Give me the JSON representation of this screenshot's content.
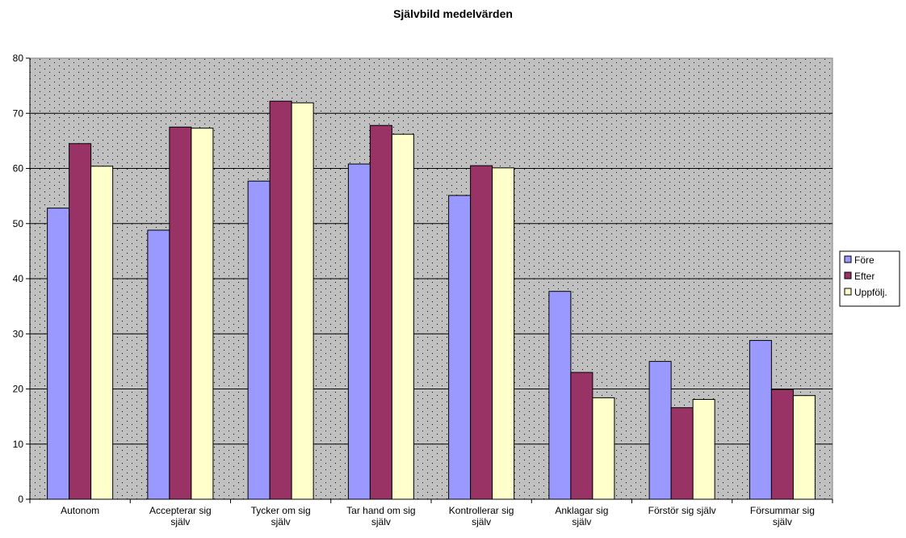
{
  "chart_data": {
    "type": "bar",
    "title": "Självbild medelvärden",
    "xlabel": "",
    "ylabel": "",
    "ylim": [
      0,
      80
    ],
    "ytick_step": 10,
    "grid": true,
    "legend_position": "right",
    "categories": [
      [
        "Autonom"
      ],
      [
        "Accepterar sig",
        "själv"
      ],
      [
        "Tycker om sig",
        "själv"
      ],
      [
        "Tar hand om sig",
        "själv"
      ],
      [
        "Kontrollerar sig",
        "själv"
      ],
      [
        "Anklagar sig",
        "själv"
      ],
      [
        "Förstör sig själv"
      ],
      [
        "Försummar sig",
        "själv"
      ]
    ],
    "series": [
      {
        "name": "Före",
        "color": "#9999ff",
        "values": [
          52.8,
          48.8,
          57.7,
          60.8,
          55.1,
          37.7,
          25.0,
          28.8
        ]
      },
      {
        "name": "Efter",
        "color": "#993366",
        "values": [
          64.5,
          67.5,
          72.2,
          67.8,
          60.5,
          23.0,
          16.6,
          19.9
        ]
      },
      {
        "name": "Uppfölj.",
        "color": "#ffffcc",
        "values": [
          60.4,
          67.3,
          71.9,
          66.2,
          60.1,
          18.4,
          18.1,
          18.8
        ]
      }
    ]
  }
}
